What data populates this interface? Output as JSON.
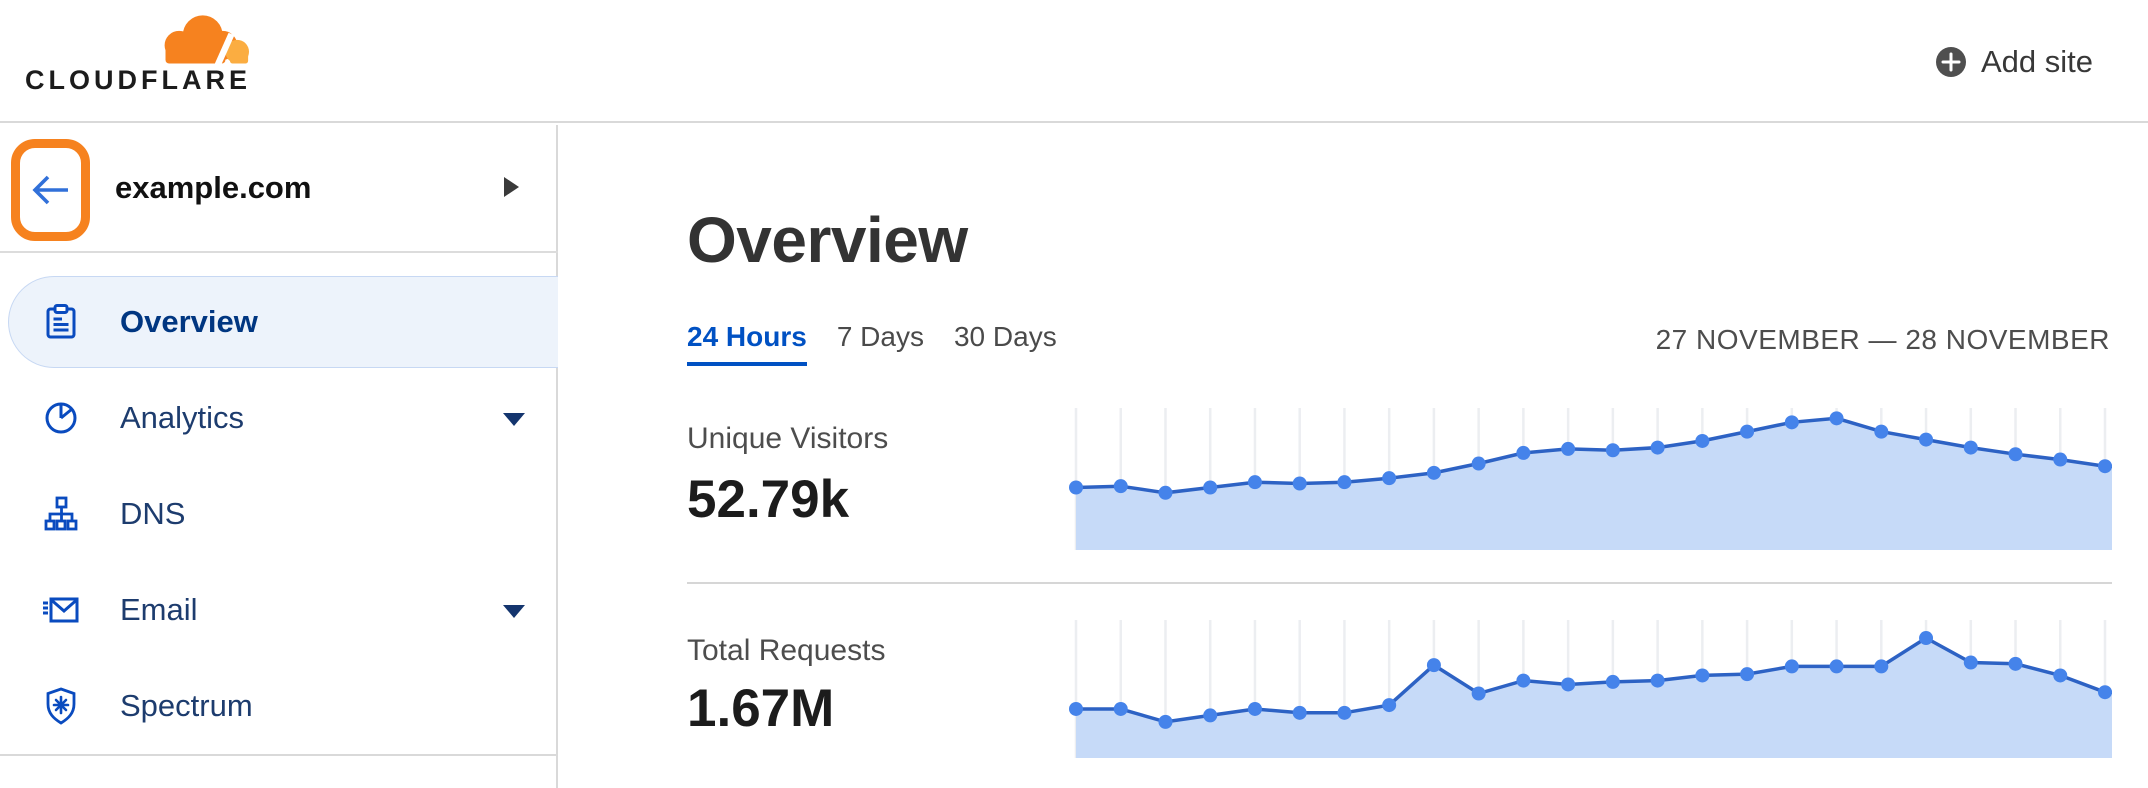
{
  "brand": {
    "wordmark": "CLOUDFLARE"
  },
  "topbar": {
    "add_site_label": "Add site"
  },
  "sidebar": {
    "site": {
      "name": "example.com"
    },
    "items": [
      {
        "label": "Overview",
        "icon": "clipboard-icon",
        "selected": true,
        "expandable": false
      },
      {
        "label": "Analytics",
        "icon": "pie-chart-icon",
        "selected": false,
        "expandable": true
      },
      {
        "label": "DNS",
        "icon": "sitemap-icon",
        "selected": false,
        "expandable": false
      },
      {
        "label": "Email",
        "icon": "envelope-icon",
        "selected": false,
        "expandable": true
      },
      {
        "label": "Spectrum",
        "icon": "shield-icon",
        "selected": false,
        "expandable": false
      }
    ]
  },
  "main": {
    "title": "Overview",
    "tabs": [
      {
        "label": "24 Hours",
        "active": true
      },
      {
        "label": "7 Days",
        "active": false
      },
      {
        "label": "30 Days",
        "active": false
      }
    ],
    "date_range": "27 NOVEMBER — 28 NOVEMBER",
    "metrics": [
      {
        "label": "Unique Visitors",
        "value": "52.79k"
      },
      {
        "label": "Total Requests",
        "value": "1.67M"
      }
    ]
  },
  "chart_data": [
    {
      "type": "area",
      "title": "Unique Visitors",
      "total": "52.79k",
      "x_axis": "hourly points over 24 hours, 27 November — 28 November (labels hidden)",
      "y_axis": "hidden (sparkline, relative scale 0–1 of chart height)",
      "grid": "vertical line per data point",
      "legend": "none",
      "values_relative": [
        0.47,
        0.48,
        0.43,
        0.47,
        0.51,
        0.5,
        0.51,
        0.54,
        0.58,
        0.65,
        0.73,
        0.76,
        0.75,
        0.77,
        0.82,
        0.89,
        0.96,
        0.99,
        0.89,
        0.83,
        0.77,
        0.72,
        0.68,
        0.63
      ]
    },
    {
      "type": "area",
      "title": "Total Requests",
      "total": "1.67M",
      "x_axis": "hourly points over 24 hours, 27 November — 28 November (labels hidden)",
      "y_axis": "hidden (sparkline, relative scale 0–1 of chart height)",
      "grid": "vertical line per data point",
      "legend": "none",
      "values_relative": [
        0.38,
        0.38,
        0.28,
        0.33,
        0.38,
        0.35,
        0.35,
        0.41,
        0.72,
        0.5,
        0.6,
        0.57,
        0.59,
        0.6,
        0.64,
        0.65,
        0.71,
        0.71,
        0.71,
        0.93,
        0.74,
        0.73,
        0.64,
        0.51
      ]
    }
  ],
  "colors": {
    "cloudflare_orange": "#f6821f",
    "cloud_light": "#fbad41",
    "accent_blue": "#0051c3",
    "nav_text": "#1d3c6e",
    "selected_nav_text": "#003681",
    "selected_bg": "#edf3fb",
    "chart_line": "#2d62c4",
    "chart_dot": "#4583ea",
    "chart_fill": "#c6daf8",
    "chart_grid": "#eceef1",
    "divider": "#d9d9d9"
  }
}
